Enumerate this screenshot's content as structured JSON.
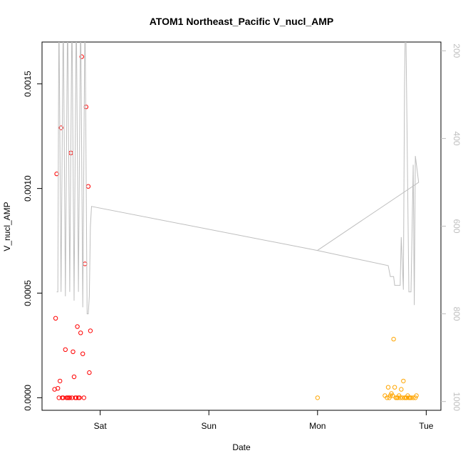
{
  "chart_data": {
    "type": "scatter",
    "title": "ATOM1 Northeast_Pacific V_nucl_AMP",
    "xlabel": "Date",
    "ylabel": "V_nucl_AMP",
    "x_axis_kind": "day",
    "x_ticks": [
      {
        "label": "Sat",
        "value": 1.0
      },
      {
        "label": "Sun",
        "value": 2.0
      },
      {
        "label": "Mon",
        "value": 3.0
      },
      {
        "label": "Tue",
        "value": 4.0
      }
    ],
    "xlim": [
      0.55,
      4.05
    ],
    "ylim": [
      -6e-05,
      0.0017
    ],
    "y_ticks": [
      {
        "label": "0.0000",
        "value": 0.0
      },
      {
        "label": "0.0005",
        "value": 0.0005
      },
      {
        "label": "0.0010",
        "value": 0.001
      },
      {
        "label": "0.0015",
        "value": 0.0015
      }
    ],
    "y2_label": "",
    "y2lim": [
      1020,
      180
    ],
    "y2_ticks": [
      {
        "label": "200",
        "value": 200
      },
      {
        "label": "400",
        "value": 400
      },
      {
        "label": "600",
        "value": 600
      },
      {
        "label": "800",
        "value": 800
      },
      {
        "label": "1000",
        "value": 1000
      }
    ],
    "grid": false,
    "legend": "none",
    "series": [
      {
        "color": "#ff0000",
        "marker": "open-circle",
        "axis": "left",
        "points": [
          {
            "x": 0.58,
            "y": 4e-05
          },
          {
            "x": 0.59,
            "y": 0.00038
          },
          {
            "x": 0.6,
            "y": 0.00107
          },
          {
            "x": 0.61,
            "y": 4.5e-05
          },
          {
            "x": 0.62,
            "y": 0.0
          },
          {
            "x": 0.63,
            "y": 8e-05
          },
          {
            "x": 0.64,
            "y": 0.00129
          },
          {
            "x": 0.65,
            "y": 0.0
          },
          {
            "x": 0.66,
            "y": 0.0
          },
          {
            "x": 0.68,
            "y": 0.00023
          },
          {
            "x": 0.69,
            "y": 0.0
          },
          {
            "x": 0.7,
            "y": 0.0
          },
          {
            "x": 0.71,
            "y": 0.0
          },
          {
            "x": 0.72,
            "y": 0.0
          },
          {
            "x": 0.73,
            "y": 0.00117
          },
          {
            "x": 0.74,
            "y": 0.0
          },
          {
            "x": 0.75,
            "y": 0.00022
          },
          {
            "x": 0.76,
            "y": 0.0001
          },
          {
            "x": 0.77,
            "y": 0.0
          },
          {
            "x": 0.78,
            "y": 0.0
          },
          {
            "x": 0.79,
            "y": 0.00034
          },
          {
            "x": 0.8,
            "y": 0.0
          },
          {
            "x": 0.81,
            "y": 0.0
          },
          {
            "x": 0.82,
            "y": 0.00031
          },
          {
            "x": 0.83,
            "y": 0.00163
          },
          {
            "x": 0.84,
            "y": 0.00021
          },
          {
            "x": 0.85,
            "y": 0.0
          },
          {
            "x": 0.86,
            "y": 0.00064
          },
          {
            "x": 0.87,
            "y": 0.00139
          },
          {
            "x": 0.89,
            "y": 0.00101
          },
          {
            "x": 0.9,
            "y": 0.00012
          },
          {
            "x": 0.91,
            "y": 0.00032
          }
        ]
      },
      {
        "color": "#ffa500",
        "marker": "open-circle",
        "axis": "left",
        "points": [
          {
            "x": 3.0,
            "y": 0.0
          },
          {
            "x": 3.62,
            "y": 1e-05
          },
          {
            "x": 3.64,
            "y": 0.0
          },
          {
            "x": 3.65,
            "y": 5e-05
          },
          {
            "x": 3.66,
            "y": 0.0
          },
          {
            "x": 3.67,
            "y": 1e-05
          },
          {
            "x": 3.68,
            "y": 2e-05
          },
          {
            "x": 3.69,
            "y": 1e-05
          },
          {
            "x": 3.7,
            "y": 0.00028
          },
          {
            "x": 3.71,
            "y": 5e-05
          },
          {
            "x": 3.72,
            "y": 0.0
          },
          {
            "x": 3.73,
            "y": 0.0
          },
          {
            "x": 3.74,
            "y": 0.0
          },
          {
            "x": 3.75,
            "y": 1e-05
          },
          {
            "x": 3.76,
            "y": 0.0
          },
          {
            "x": 3.77,
            "y": 4e-05
          },
          {
            "x": 3.78,
            "y": 0.0
          },
          {
            "x": 3.79,
            "y": 8e-05
          },
          {
            "x": 3.8,
            "y": 0.0
          },
          {
            "x": 3.81,
            "y": 0.0
          },
          {
            "x": 3.82,
            "y": 0.0
          },
          {
            "x": 3.83,
            "y": 1e-05
          },
          {
            "x": 3.84,
            "y": 0.0
          },
          {
            "x": 3.85,
            "y": 0.0
          },
          {
            "x": 3.86,
            "y": 0.0
          },
          {
            "x": 3.88,
            "y": 0.0
          },
          {
            "x": 3.9,
            "y": 0.0
          },
          {
            "x": 3.91,
            "y": 1e-05
          }
        ]
      },
      {
        "color": "#bebebe",
        "type": "line",
        "axis": "right",
        "points": [
          {
            "x": 0.6,
            "y": 750
          },
          {
            "x": 0.61,
            "y": 750
          },
          {
            "x": 0.62,
            "y": 100
          },
          {
            "x": 0.64,
            "y": 750
          },
          {
            "x": 0.66,
            "y": 100
          },
          {
            "x": 0.68,
            "y": 760
          },
          {
            "x": 0.7,
            "y": 100
          },
          {
            "x": 0.72,
            "y": 750
          },
          {
            "x": 0.74,
            "y": 100
          },
          {
            "x": 0.76,
            "y": 770
          },
          {
            "x": 0.78,
            "y": 100
          },
          {
            "x": 0.8,
            "y": 750
          },
          {
            "x": 0.82,
            "y": 100
          },
          {
            "x": 0.84,
            "y": 785
          },
          {
            "x": 0.86,
            "y": 100
          },
          {
            "x": 0.88,
            "y": 800
          },
          {
            "x": 0.89,
            "y": 800
          },
          {
            "x": 0.9,
            "y": 760
          },
          {
            "x": 0.91,
            "y": 600
          },
          {
            "x": 0.92,
            "y": 555
          },
          {
            "x": 2.99,
            "y": 655
          },
          {
            "x": 3.65,
            "y": 690
          },
          {
            "x": 3.67,
            "y": 715
          },
          {
            "x": 3.7,
            "y": 715
          },
          {
            "x": 3.71,
            "y": 735
          },
          {
            "x": 3.76,
            "y": 735
          },
          {
            "x": 3.77,
            "y": 625
          },
          {
            "x": 3.79,
            "y": 745
          },
          {
            "x": 3.8,
            "y": 280
          },
          {
            "x": 3.81,
            "y": 90
          },
          {
            "x": 3.84,
            "y": 750
          },
          {
            "x": 3.86,
            "y": 750
          },
          {
            "x": 3.88,
            "y": 460
          },
          {
            "x": 3.89,
            "y": 780
          },
          {
            "x": 3.9,
            "y": 440
          },
          {
            "x": 3.92,
            "y": 480
          },
          {
            "x": 3.93,
            "y": 500
          },
          {
            "x": 3.0,
            "y": 655
          }
        ]
      }
    ]
  }
}
